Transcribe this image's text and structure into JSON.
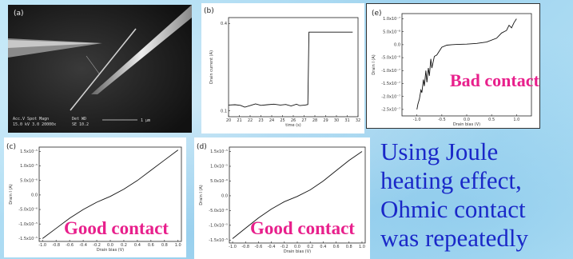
{
  "caption_lines": [
    "Using  Joule",
    "heating effect,",
    "Ohmic contact",
    "was repeatedly"
  ],
  "labels": {
    "good_c": "Good contact",
    "good_d": "Good contact",
    "bad_e": "Bad contact"
  },
  "colors": {
    "contact_label": "#e8208c",
    "caption": "#1a28c8",
    "background": "#a9dcf3"
  },
  "sem": {
    "panel_label": "(a)",
    "info_left": [
      "Acc.V  Spot Magn",
      "15.0 kV 3.0  20000x"
    ],
    "info_mid": [
      "Det  WD",
      "SE   10.2"
    ],
    "scale_text": "1 μm"
  },
  "chart_data": [
    {
      "panel": "(b)",
      "type": "line",
      "xlabel": "time (s)",
      "ylabel": "Drain current (A)",
      "x_ticks": [
        "20",
        "21",
        "22",
        "23",
        "24",
        "25",
        "26",
        "27",
        "28",
        "29",
        "30",
        "31",
        "32"
      ],
      "y_ticks": [
        "0.1",
        "0.4"
      ],
      "series": [
        {
          "x": [
            20,
            20.6,
            21.1,
            21.5,
            22.0,
            22.5,
            23.0,
            23.6,
            24.2,
            24.8,
            25.3,
            25.8,
            26.3,
            26.6,
            27.1,
            27.35,
            27.45,
            27.6,
            28.5,
            29.5,
            30.5,
            31.5
          ],
          "y": [
            0.12,
            0.121,
            0.119,
            0.113,
            0.118,
            0.124,
            0.119,
            0.121,
            0.123,
            0.12,
            0.122,
            0.117,
            0.123,
            0.118,
            0.12,
            0.122,
            0.37,
            0.37,
            0.37,
            0.37,
            0.37,
            0.37
          ]
        }
      ]
    },
    {
      "panel": "(e)",
      "type": "line",
      "xlabel": "Drain bias (V)",
      "ylabel": "Drain I (A)",
      "x_ticks": [
        "-1.0",
        "-0.5",
        "0.0",
        "0.5",
        "1.0"
      ],
      "y_ticks": [
        "1.0x10⁻⁷",
        "5.0x10⁻⁸",
        "0.0",
        "-5.0x10⁻⁸",
        "-1.0x10⁻⁷",
        "-1.5x10⁻⁷",
        "-2.0x10⁻⁷",
        "-2.5x10⁻⁷"
      ],
      "series": [
        {
          "x": [
            -1.0,
            -0.98,
            -0.95,
            -0.92,
            -0.9,
            -0.87,
            -0.85,
            -0.82,
            -0.8,
            -0.77,
            -0.75,
            -0.72,
            -0.7,
            -0.65,
            -0.6,
            -0.5,
            -0.4,
            -0.3,
            -0.2,
            0.0,
            0.2,
            0.4,
            0.6,
            0.7,
            0.8,
            0.85,
            0.9,
            0.95,
            1.0
          ],
          "y": [
            -2.5e-07,
            -2.3e-07,
            -2.1e-07,
            -1.75e-07,
            -1.85e-07,
            -1.35e-07,
            -1.6e-07,
            -1e-07,
            -1.45e-07,
            -9e-08,
            -1.2e-07,
            -5.5e-08,
            -9e-08,
            -4.5e-08,
            -4e-08,
            -1e-08,
            -2e-09,
            0.0,
            1e-09,
            2e-09,
            5e-09,
            1e-08,
            2.5e-08,
            4.5e-08,
            5.5e-08,
            7.5e-08,
            6.5e-08,
            8.5e-08,
            1e-07
          ]
        }
      ]
    },
    {
      "panel": "(c)",
      "type": "line",
      "xlabel": "Drain bias (V)",
      "ylabel": "Drain I (A)",
      "x_ticks": [
        "-1.0",
        "-0.8",
        "-0.6",
        "-0.4",
        "-0.2",
        "0.0",
        "0.2",
        "0.4",
        "0.6",
        "0.8",
        "1.0"
      ],
      "y_ticks": [
        "1.5x10⁻⁵",
        "1.0x10⁻⁵",
        "5.0x10⁻⁶",
        "0.0",
        "-5.0x10⁻⁶",
        "-1.0x10⁻⁵",
        "-1.5x10⁻⁵"
      ],
      "series": [
        {
          "x": [
            -1.0,
            -0.8,
            -0.6,
            -0.4,
            -0.2,
            0.0,
            0.2,
            0.4,
            0.6,
            0.8,
            1.0
          ],
          "y": [
            -1.5e-05,
            -1.15e-05,
            -8e-06,
            -5e-06,
            -2.5e-06,
            -5e-07,
            2e-06,
            5e-06,
            8.5e-06,
            1.2e-05,
            1.55e-05
          ]
        }
      ]
    },
    {
      "panel": "(d)",
      "type": "line",
      "xlabel": "Drain bias (V)",
      "ylabel": "Drain I (A)",
      "x_ticks": [
        "-1.0",
        "-0.8",
        "-0.6",
        "-0.4",
        "-0.2",
        "0.0",
        "0.2",
        "0.4",
        "0.6",
        "0.8",
        "1.0"
      ],
      "y_ticks": [
        "1.5x10⁻⁵",
        "1.0x10⁻⁵",
        "5.0x10⁻⁶",
        "0.0",
        "-5.0x10⁻⁶",
        "-1.0x10⁻⁵",
        "-1.5x10⁻⁵"
      ],
      "series": [
        {
          "x": [
            -1.0,
            -0.8,
            -0.6,
            -0.4,
            -0.2,
            0.0,
            0.2,
            0.4,
            0.6,
            0.8,
            1.0
          ],
          "y": [
            -1.45e-05,
            -1.1e-05,
            -7.5e-06,
            -4.5e-06,
            -2e-06,
            -2e-07,
            2e-06,
            5e-06,
            8.5e-06,
            1.2e-05,
            1.5e-05
          ]
        }
      ]
    }
  ]
}
